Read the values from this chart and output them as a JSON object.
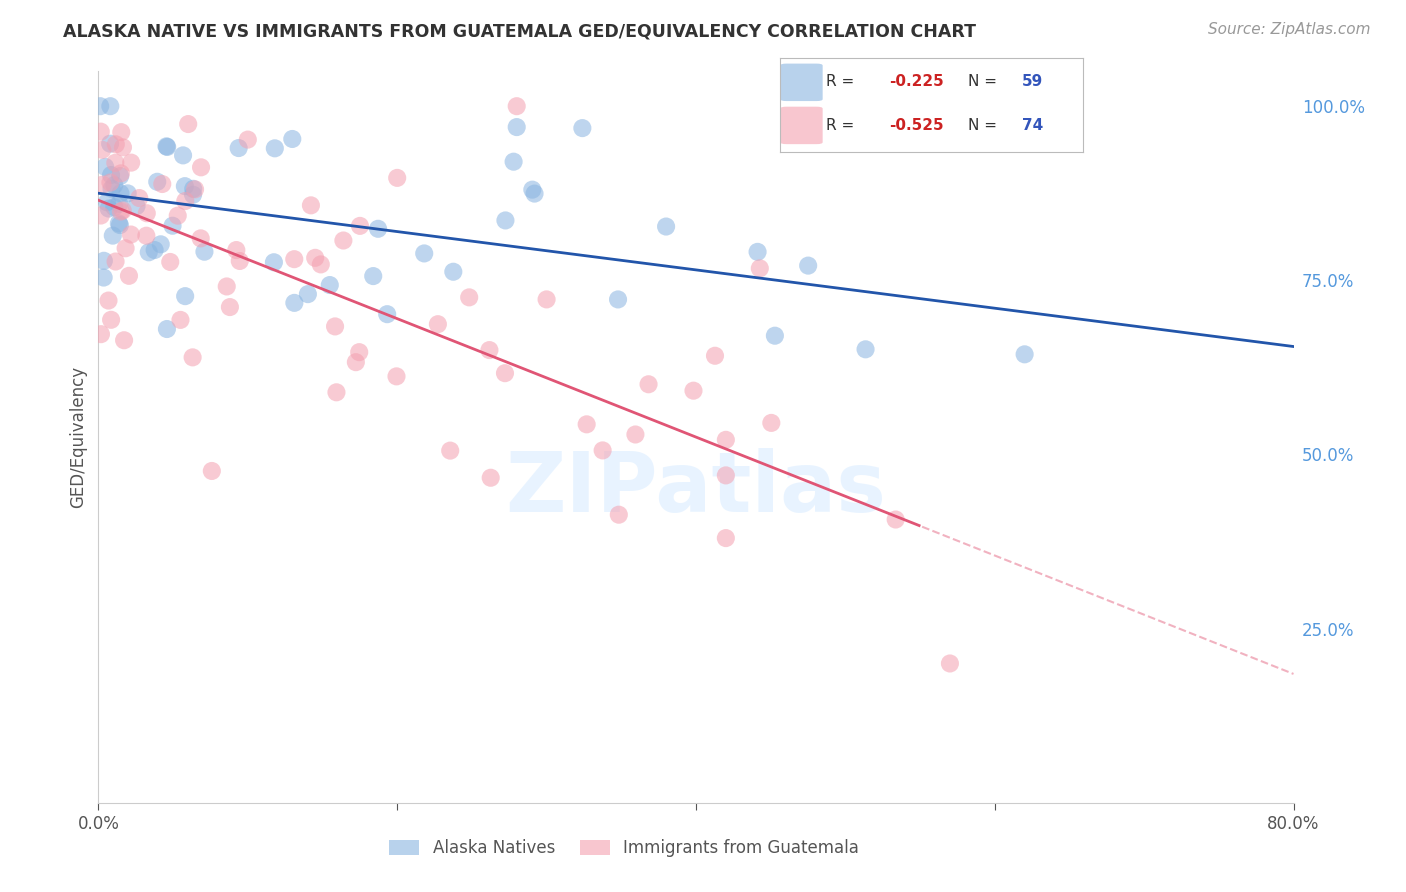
{
  "title": "ALASKA NATIVE VS IMMIGRANTS FROM GUATEMALA GED/EQUIVALENCY CORRELATION CHART",
  "source": "Source: ZipAtlas.com",
  "ylabel": "GED/Equivalency",
  "ytick_labels": [
    "100.0%",
    "75.0%",
    "50.0%",
    "25.0%"
  ],
  "ytick_values": [
    1.0,
    0.75,
    0.5,
    0.25
  ],
  "legend_r_blue": "-0.225",
  "legend_n_blue": "59",
  "legend_r_pink": "-0.525",
  "legend_n_pink": "74",
  "color_blue": "#89B4E0",
  "color_pink": "#F4A0B0",
  "color_blue_line": "#2255AA",
  "color_pink_line": "#E05575",
  "background": "#FFFFFF",
  "xmin": 0.0,
  "xmax": 80.0,
  "ymin": 0.0,
  "ymax": 1.05,
  "watermark": "ZIPatlas",
  "grid_color": "#CCCCCC",
  "blue_intercept": 0.875,
  "blue_slope": -0.00275,
  "pink_intercept": 0.865,
  "pink_slope": -0.0085,
  "pink_line_end_solid": 55.0
}
